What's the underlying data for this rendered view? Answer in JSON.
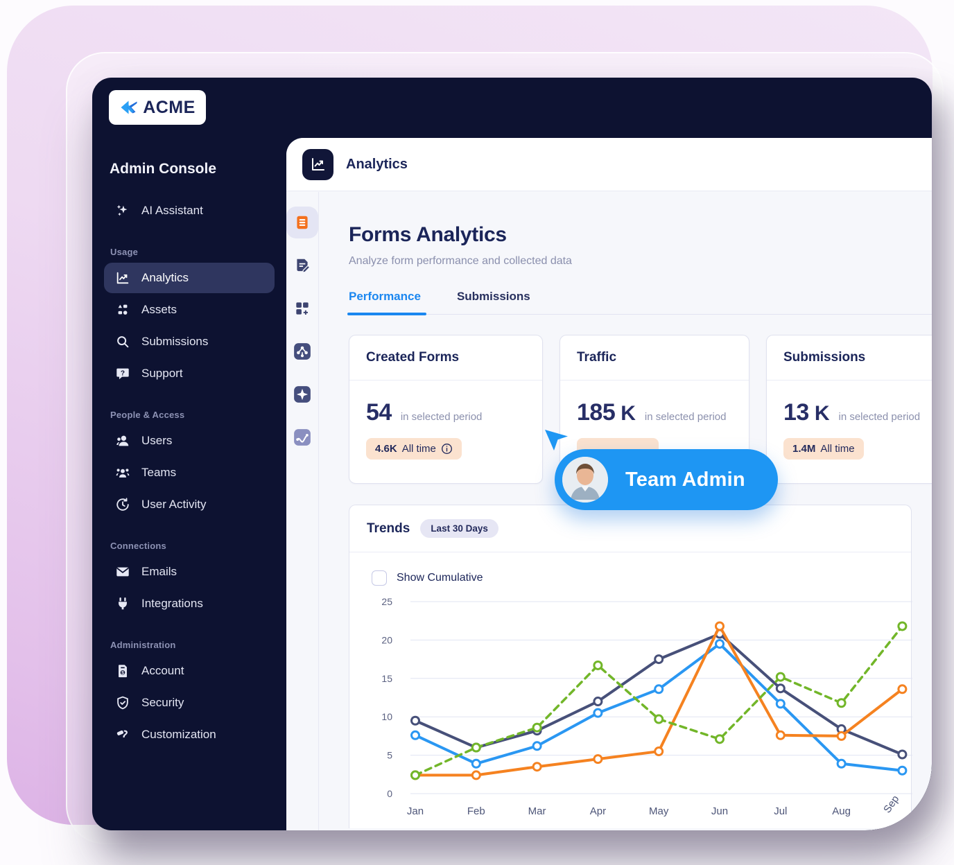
{
  "brand": {
    "name": "ACME"
  },
  "sidebar": {
    "title": "Admin Console",
    "assistant": {
      "label": "AI Assistant"
    },
    "sections": [
      {
        "label": "Usage",
        "items": [
          {
            "label": "Analytics",
            "active": true
          },
          {
            "label": "Assets"
          },
          {
            "label": "Submissions"
          },
          {
            "label": "Support"
          }
        ]
      },
      {
        "label": "People & Access",
        "items": [
          {
            "label": "Users"
          },
          {
            "label": "Teams"
          },
          {
            "label": "User Activity"
          }
        ]
      },
      {
        "label": "Connections",
        "items": [
          {
            "label": "Emails"
          },
          {
            "label": "Integrations"
          }
        ]
      },
      {
        "label": "Administration",
        "items": [
          {
            "label": "Account"
          },
          {
            "label": "Security"
          },
          {
            "label": "Customization"
          }
        ]
      }
    ]
  },
  "header": {
    "title": "Analytics"
  },
  "page": {
    "title": "Forms Analytics",
    "subtitle": "Analyze form performance and collected data",
    "tabs": [
      {
        "label": "Performance",
        "active": true
      },
      {
        "label": "Submissions",
        "active": false
      }
    ]
  },
  "stats": [
    {
      "title": "Created Forms",
      "value": "54",
      "unit": "",
      "period": "in selected period",
      "badge_value": "4.6K",
      "badge_suffix": "All time",
      "has_info": true
    },
    {
      "title": "Traffic",
      "value": "185",
      "unit": "K",
      "period": "in selected period",
      "badge_value": "",
      "badge_suffix": "",
      "has_info": false
    },
    {
      "title": "Submissions",
      "value": "13",
      "unit": "K",
      "period": "in selected period",
      "badge_value": "1.4M",
      "badge_suffix": "All time",
      "has_info": false
    }
  ],
  "cursor_badge": {
    "label": "Team Admin"
  },
  "trends": {
    "title": "Trends",
    "range_badge": "Last 30 Days",
    "checkbox_label": "Show Cumulative",
    "checked": false
  },
  "chart_data": {
    "type": "line",
    "title": "Trends",
    "categories": [
      "Jan",
      "Feb",
      "Mar",
      "Apr",
      "May",
      "Jun",
      "Jul",
      "Aug",
      "Sep"
    ],
    "series": [
      {
        "name": "navy",
        "color": "#475079",
        "dashed": false,
        "values": [
          9.5,
          6.0,
          8.2,
          12.0,
          17.5,
          20.8,
          13.7,
          8.4,
          5.1
        ]
      },
      {
        "name": "blue",
        "color": "#2a97f2",
        "dashed": false,
        "values": [
          7.6,
          3.9,
          6.2,
          10.5,
          13.6,
          19.5,
          11.7,
          3.9,
          3.0
        ]
      },
      {
        "name": "orange",
        "color": "#f58220",
        "dashed": false,
        "values": [
          2.4,
          2.4,
          3.5,
          4.5,
          5.5,
          21.8,
          7.6,
          7.5,
          13.6
        ]
      },
      {
        "name": "green",
        "color": "#72b629",
        "dashed": true,
        "values": [
          2.4,
          6.0,
          8.6,
          16.7,
          9.7,
          7.1,
          15.2,
          11.8,
          21.8
        ]
      }
    ],
    "xlabel": "",
    "ylabel": "",
    "ylim": [
      0,
      25
    ],
    "yticks": [
      0,
      5,
      10,
      15,
      20,
      25
    ],
    "grid": "horizontal",
    "legend": "none"
  },
  "colors": {
    "accent_blue": "#1b87f0",
    "pill_blue": "#1e96f3",
    "navy": "#0d1231",
    "heading_navy": "#1b2559",
    "badge_peach": "#fbe2cf",
    "chart_navy": "#475079",
    "chart_blue": "#2a97f2",
    "chart_orange": "#f58220",
    "chart_green": "#72b629"
  }
}
